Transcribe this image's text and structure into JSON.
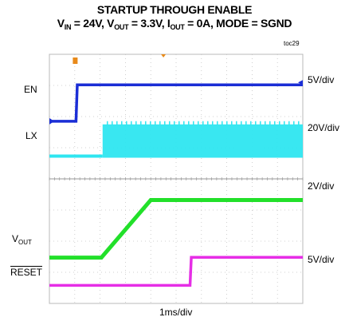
{
  "title_line1": "STARTUP THROUGH ENABLE",
  "title_line2": {
    "v": "V",
    "in_sub": "IN",
    "in_val": " = 24V, ",
    "out_v": "V",
    "out_sub": "OUT",
    "out_val": " = 3.3V, ",
    "i": "I",
    "iout_sub": "OUT",
    "i_val": " = 0A, MODE = SGND"
  },
  "toc": "toc29",
  "channels": {
    "en": {
      "label": "EN",
      "scale": "5V/div",
      "color": "#1b2ed6"
    },
    "lx": {
      "label": "LX",
      "scale": "20V/div",
      "color": "#2ee6f0"
    },
    "vout": {
      "label_main": "V",
      "label_sub": "OUT",
      "scale": "2V/div",
      "color": "#22e02a"
    },
    "reset": {
      "label": "RESET",
      "scale": "5V/div",
      "color": "#e62ee6"
    }
  },
  "chart_data": {
    "type": "line",
    "xlabel": "1ms/div",
    "x_unit": "ms",
    "x_range": [
      0,
      10
    ],
    "y_unit": "div",
    "y_range": [
      0,
      8
    ],
    "series": [
      {
        "name": "EN",
        "x": [
          0,
          1.05,
          1.1,
          10
        ],
        "y": [
          5.85,
          5.85,
          7.02,
          7.02
        ]
      },
      {
        "name": "LX",
        "x": [
          0,
          2.05,
          2.1,
          10
        ],
        "y": [
          4.73,
          4.73,
          5.75,
          5.75
        ],
        "switching_from_ms": 2.1
      },
      {
        "name": "VOUT",
        "x": [
          0,
          2.05,
          4.0,
          10
        ],
        "y": [
          1.47,
          1.47,
          3.32,
          3.32
        ]
      },
      {
        "name": "RESET",
        "x": [
          0,
          5.55,
          5.6,
          10
        ],
        "y": [
          0.58,
          0.58,
          1.48,
          1.48
        ]
      }
    ]
  }
}
